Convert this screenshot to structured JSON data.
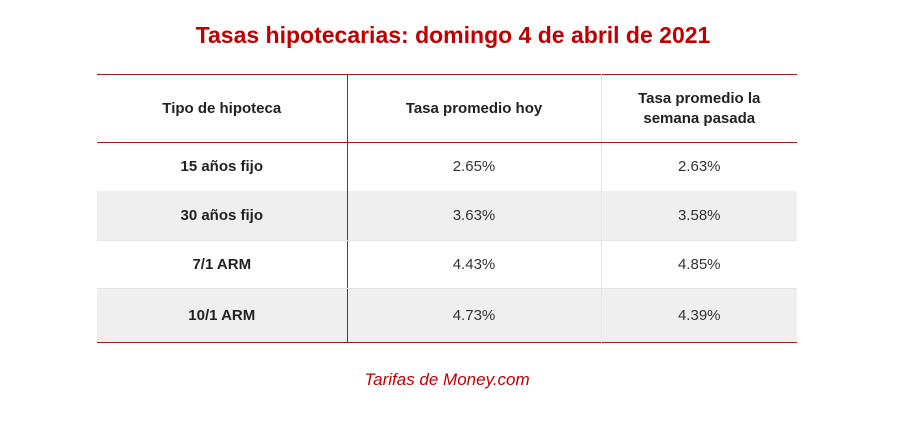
{
  "header": {
    "title": "Tasas hipotecarias: domingo 4 de abril de 2021"
  },
  "table": {
    "columns": [
      "Tipo de hipoteca",
      "Tasa promedio hoy",
      "Tasa promedio la semana pasada"
    ],
    "rows": [
      [
        "15 años fijo",
        "2.65%",
        "2.63%"
      ],
      [
        "30 años fijo",
        "3.63%",
        "3.58%"
      ],
      [
        "7/1 ARM",
        "4.43%",
        "4.85%"
      ],
      [
        "10/1 ARM",
        "4.73%",
        "4.39%"
      ]
    ]
  },
  "footer": {
    "source": "Tarifas de Money.com"
  }
}
